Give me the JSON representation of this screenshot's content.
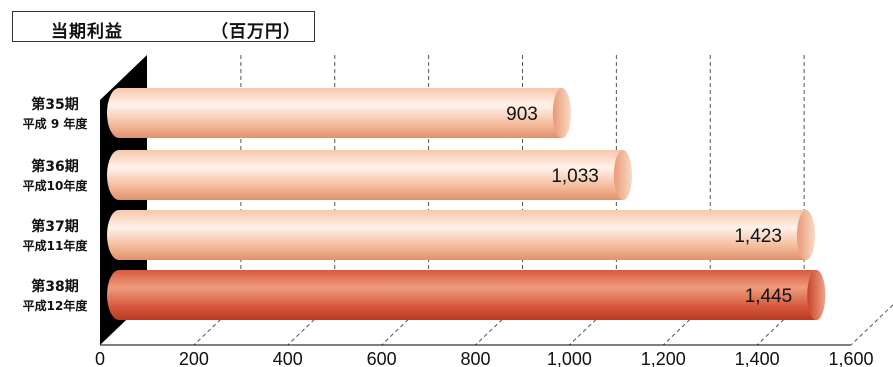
{
  "header": {
    "title": "当期利益",
    "unit": "（百万円）"
  },
  "chart_data": {
    "type": "bar",
    "orientation": "horizontal",
    "categories": [
      [
        "第35期",
        "平成 9 年度"
      ],
      [
        "第36期",
        "平成10年度"
      ],
      [
        "第37期",
        "平成11年度"
      ],
      [
        "第38期",
        "平成12年度"
      ]
    ],
    "values": [
      903,
      1033,
      1423,
      1445
    ],
    "value_labels": [
      "903",
      "1,033",
      "1,423",
      "1,445"
    ],
    "xlim": [
      0,
      1600
    ],
    "xticks": [
      0,
      200,
      400,
      600,
      800,
      1000,
      1200,
      1400,
      1600
    ],
    "xtick_labels": [
      "0",
      "200",
      "400",
      "600",
      "800",
      "1,000",
      "1,200",
      "1,400",
      "1,600"
    ],
    "grid": "vertical dashed",
    "colors": {
      "bar_light": "#f2b08f",
      "bar_highlight": "#d5503a",
      "wall": "#000000",
      "grid": "#555555"
    }
  }
}
